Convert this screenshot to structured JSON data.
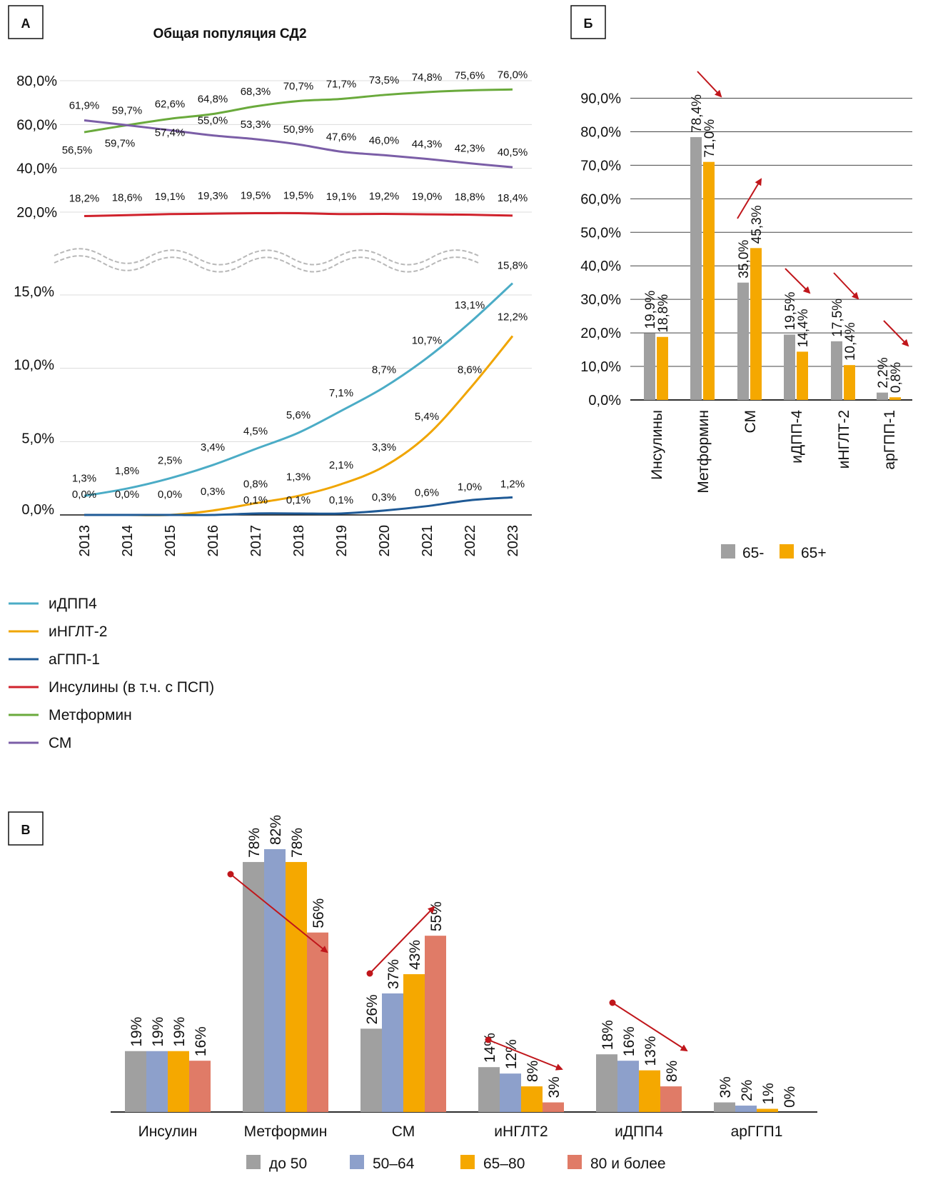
{
  "colors": {
    "idpp4": "#4bacc6",
    "ingl2": "#f0a500",
    "agpp1": "#1f5a96",
    "insulin": "#d0222c",
    "metformin": "#6aaa3c",
    "sm": "#7b5ea7",
    "gray": "#a0a0a0",
    "orange": "#f5a800",
    "blue": "#8da0cb",
    "salmon": "#e07b67",
    "arrow": "#c0161b"
  },
  "panels": {
    "a": "А",
    "b": "Б",
    "c": "В"
  },
  "chart_data": [
    {
      "id": "A",
      "type": "line",
      "title": "Общая популяция СД2",
      "x": [
        "2013",
        "2014",
        "2015",
        "2016",
        "2017",
        "2018",
        "2019",
        "2020",
        "2021",
        "2022",
        "2023"
      ],
      "upper_ticks": [
        "20,0%",
        "40,0%",
        "60,0%",
        "80,0%"
      ],
      "lower_ticks": [
        "0,0%",
        "5,0%",
        "10,0%",
        "15,0%"
      ],
      "series": [
        {
          "key": "metformin",
          "name": "Метформин",
          "values": [
            56.5,
            59.7,
            62.6,
            64.8,
            68.3,
            70.7,
            71.7,
            73.5,
            74.8,
            75.6,
            76.0
          ],
          "labels": [
            "56,5%",
            "59,7%",
            "62,6%",
            "64,8%",
            "68,3%",
            "70,7%",
            "71,7%",
            "73,5%",
            "74,8%",
            "75,6%",
            "76,0%"
          ]
        },
        {
          "key": "sm",
          "name": "СМ",
          "values": [
            61.9,
            59.7,
            57.4,
            55.0,
            53.3,
            50.9,
            47.6,
            46.0,
            44.3,
            42.3,
            40.5
          ],
          "labels": [
            "61,9%",
            "59,7%",
            "57,4%",
            "55,0%",
            "53,3%",
            "50,9%",
            "47,6%",
            "46,0%",
            "44,3%",
            "42,3%",
            "40,5%"
          ]
        },
        {
          "key": "insulin",
          "name": "Инсулины (в т.ч. с ПСП)",
          "values": [
            18.2,
            18.6,
            19.1,
            19.3,
            19.5,
            19.5,
            19.1,
            19.2,
            19.0,
            18.8,
            18.4
          ],
          "labels": [
            "18,2%",
            "18,6%",
            "19,1%",
            "19,3%",
            "19,5%",
            "19,5%",
            "19,1%",
            "19,2%",
            "19,0%",
            "18,8%",
            "18,4%"
          ]
        },
        {
          "key": "idpp4",
          "name": "иДПП4",
          "values": [
            1.3,
            1.8,
            2.5,
            3.4,
            4.5,
            5.6,
            7.1,
            8.7,
            10.7,
            13.1,
            15.8
          ],
          "labels": [
            "1,3%",
            "1,8%",
            "2,5%",
            "3,4%",
            "4,5%",
            "5,6%",
            "7,1%",
            "8,7%",
            "10,7%",
            "13,1%",
            "15,8%"
          ]
        },
        {
          "key": "ingl2",
          "name": "иНГЛТ-2",
          "values": [
            0.0,
            0.0,
            0.0,
            0.3,
            0.8,
            1.3,
            2.1,
            3.3,
            5.4,
            8.6,
            12.2
          ],
          "labels": [
            "0,0%",
            "0,0%",
            "0,0%",
            "0,3%",
            "0,8%",
            "1,3%",
            "2,1%",
            "3,3%",
            "5,4%",
            "8,6%",
            "12,2%"
          ]
        },
        {
          "key": "agpp1",
          "name": "аГПП-1",
          "values": [
            0.0,
            0.0,
            0.0,
            0.0,
            0.1,
            0.1,
            0.1,
            0.3,
            0.6,
            1.0,
            1.2
          ],
          "labels": [
            "",
            "",
            "",
            "",
            "0,1%",
            "0,1%",
            "0,1%",
            "0,3%",
            "0,6%",
            "1,0%",
            "1,2%"
          ]
        }
      ],
      "legend": [
        "idpp4",
        "ingl2",
        "agpp1",
        "insulin",
        "metformin",
        "sm"
      ],
      "legend_placement": "bottom-left"
    },
    {
      "id": "B",
      "type": "bar",
      "categories": [
        "Инсулины",
        "Метформин",
        "СМ",
        "иДПП-4",
        "иНГЛТ-2",
        "арГПП-1"
      ],
      "ticks": [
        "0,0%",
        "10,0%",
        "20,0%",
        "30,0%",
        "40,0%",
        "50,0%",
        "60,0%",
        "70,0%",
        "80,0%",
        "90,0%"
      ],
      "ylim": [
        0,
        90
      ],
      "series": [
        {
          "name": "65-",
          "color_key": "gray",
          "values": [
            19.9,
            78.4,
            35.0,
            19.5,
            17.5,
            2.2
          ],
          "labels": [
            "19,9%",
            "78,4%",
            "35,0%",
            "19,5%",
            "17,5%",
            "2,2%"
          ]
        },
        {
          "name": "65+",
          "color_key": "orange",
          "values": [
            18.8,
            71.0,
            45.3,
            14.4,
            10.4,
            0.8
          ],
          "labels": [
            "18,8%",
            "71,0%",
            "45,3%",
            "14,4%",
            "10,4%",
            "0,8%"
          ]
        }
      ],
      "trend_arrows": [
        "down",
        "down",
        "up",
        "down",
        "down",
        "down"
      ],
      "legend_placement": "bottom"
    },
    {
      "id": "C",
      "type": "bar",
      "categories": [
        "Инсулин",
        "Метформин",
        "СМ",
        "иНГЛТ2",
        "иДПП4",
        "арГГП1"
      ],
      "ylim": [
        0,
        90
      ],
      "series": [
        {
          "name": "до 50",
          "color_key": "gray",
          "values": [
            19,
            78,
            26,
            14,
            18,
            3
          ]
        },
        {
          "name": "50–64",
          "color_key": "blue",
          "values": [
            19,
            82,
            37,
            12,
            16,
            2
          ]
        },
        {
          "name": "65–80",
          "color_key": "orange",
          "values": [
            19,
            78,
            43,
            8,
            13,
            1
          ]
        },
        {
          "name": "80 и более",
          "color_key": "salmon",
          "values": [
            16,
            56,
            55,
            3,
            8,
            0
          ]
        }
      ],
      "trend_arrows": [
        null,
        "down",
        "up",
        "down",
        "down",
        null
      ],
      "legend_placement": "bottom"
    }
  ]
}
